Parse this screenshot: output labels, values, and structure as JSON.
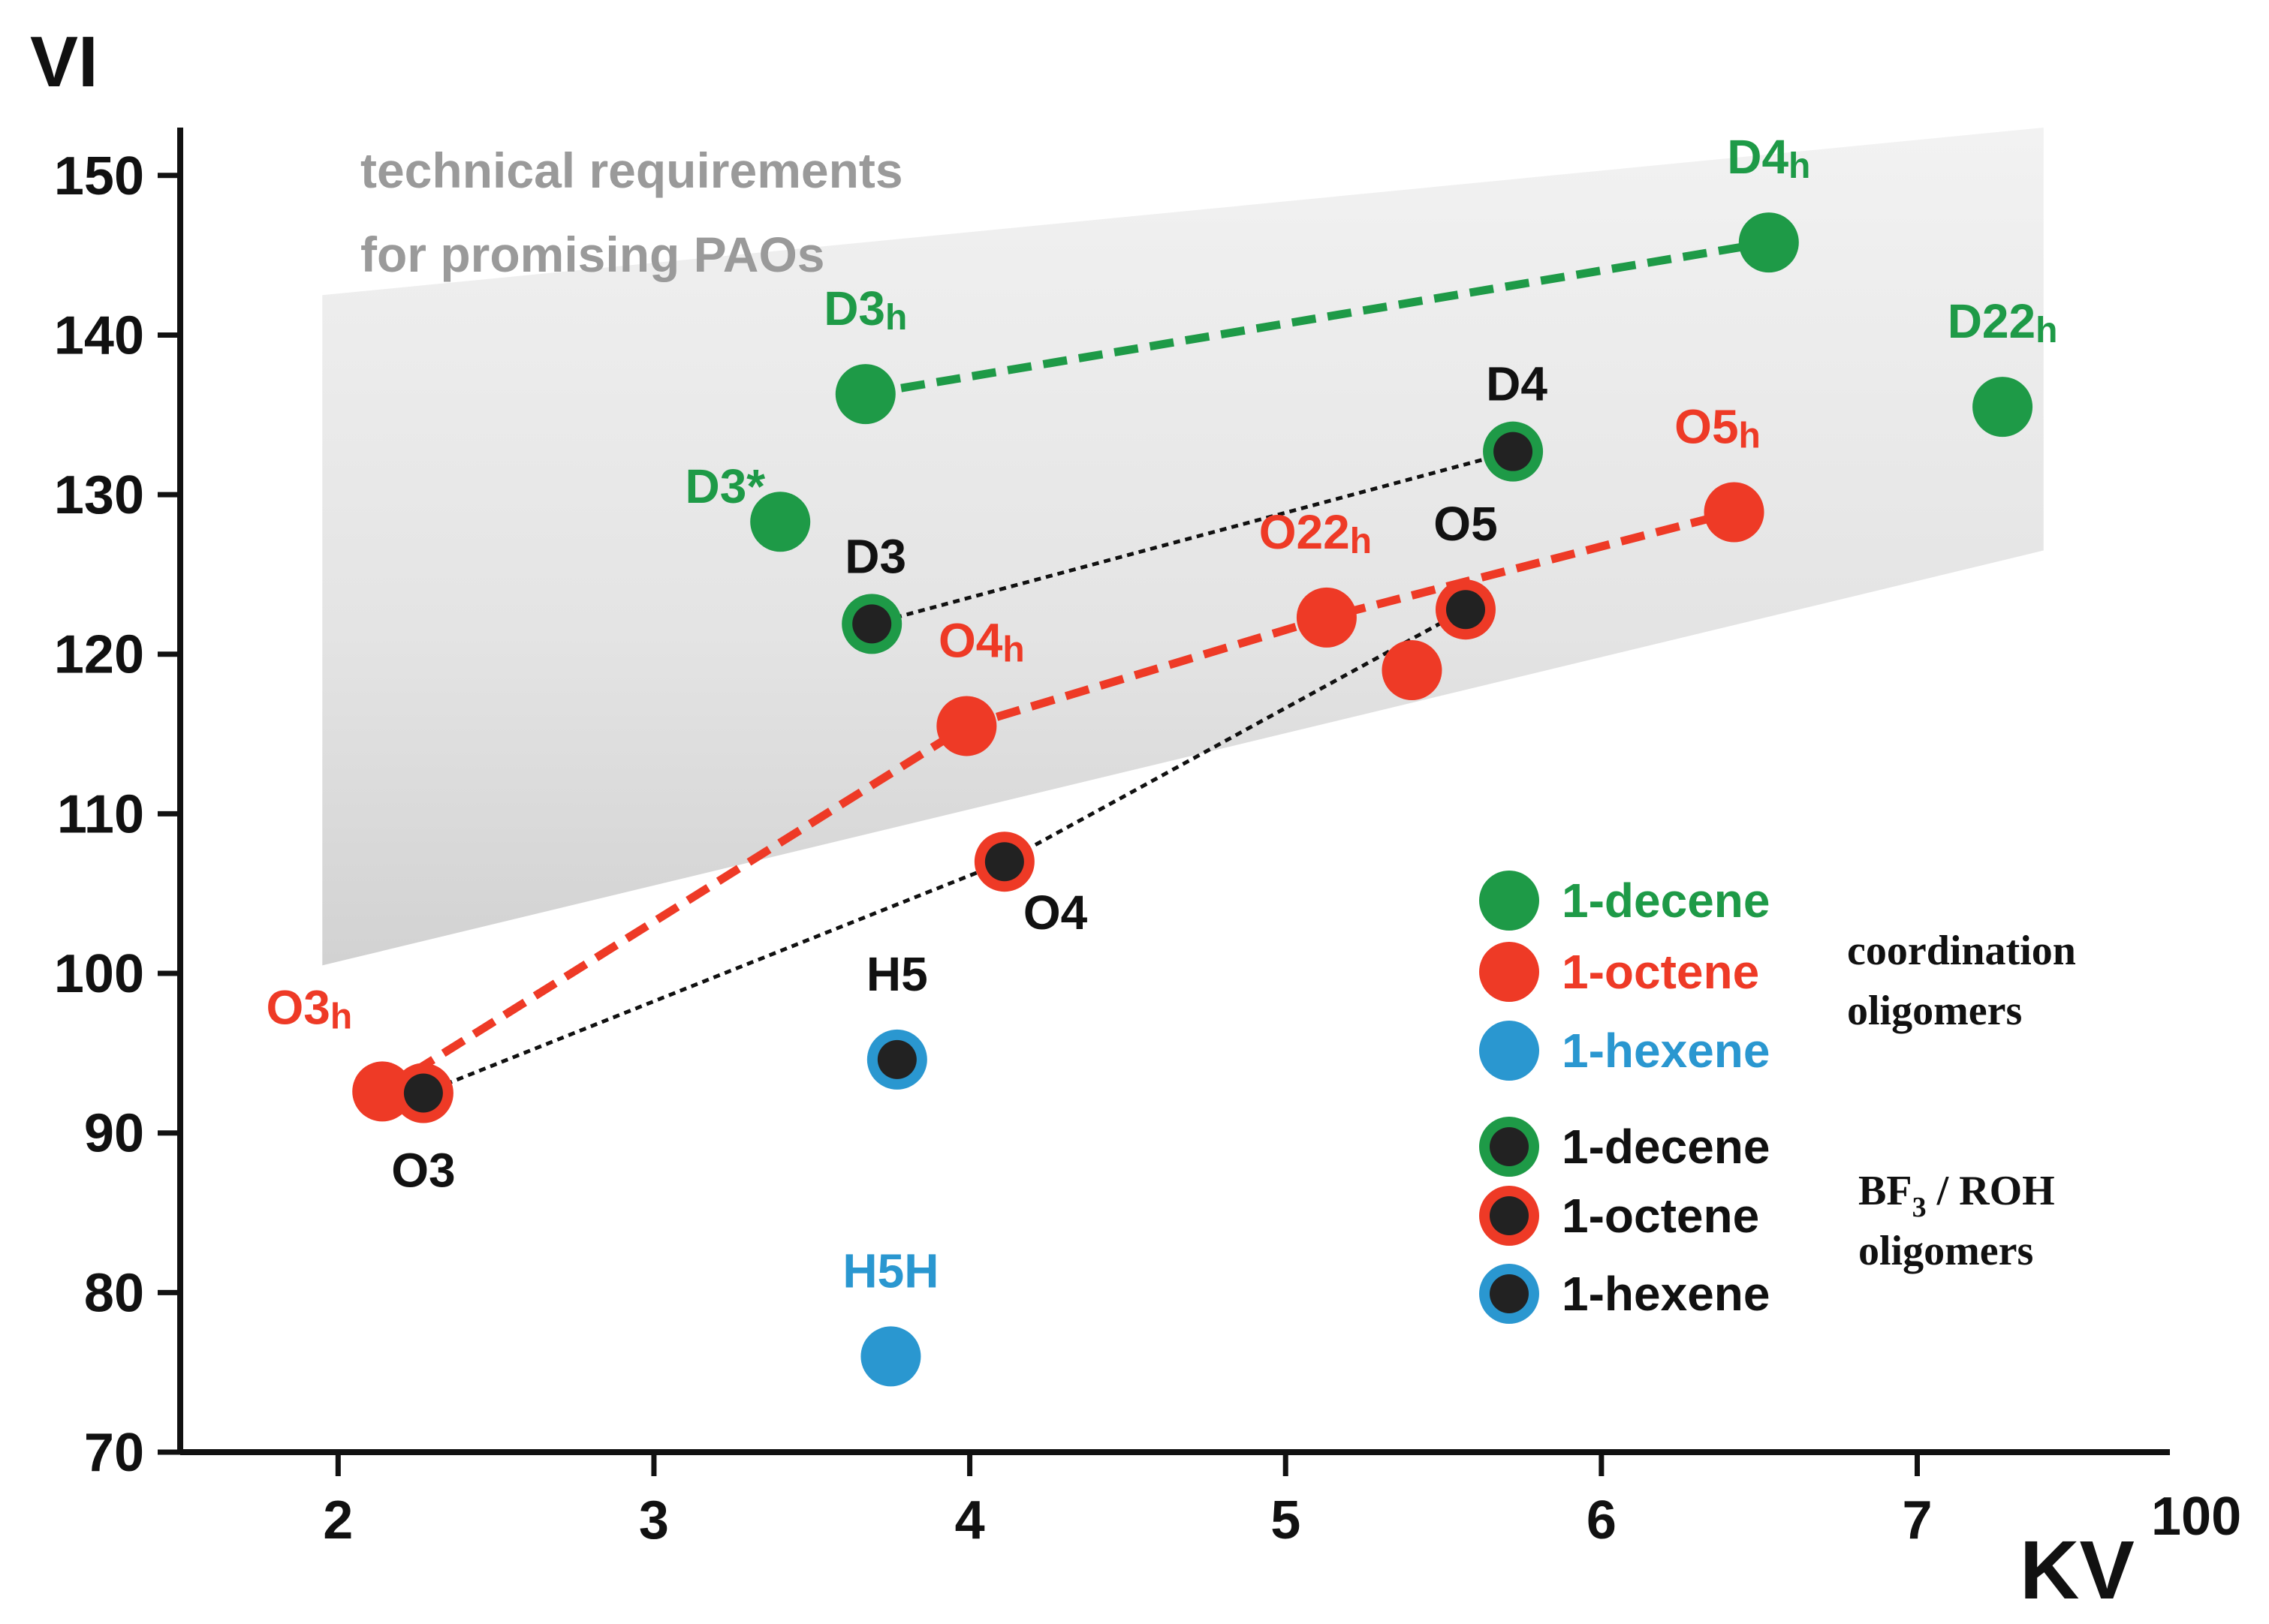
{
  "chart_data": {
    "type": "scatter",
    "title": "",
    "xlabel": "KV",
    "xlabel_superscript": "100",
    "ylabel": "VI",
    "xlim": [
      1.5,
      7.8
    ],
    "ylim": [
      70,
      153
    ],
    "x_ticks": [
      "2",
      "3",
      "4",
      "5",
      "6",
      "7"
    ],
    "y_ticks": [
      "70",
      "80",
      "90",
      "100",
      "110",
      "120",
      "130",
      "140",
      "150"
    ],
    "region": {
      "label_line1": "technical requirements",
      "label_line2": "for promising PAOs",
      "polygon": [
        [
          1.95,
          142.5
        ],
        [
          7.4,
          153
        ],
        [
          7.4,
          126.5
        ],
        [
          1.95,
          100.5
        ]
      ]
    },
    "colors": {
      "decene": "#1e9a47",
      "octene": "#ee3a26",
      "hexene": "#2a97d0",
      "core": "#222222",
      "black_line": "#111111",
      "region": "#d8d8d8"
    },
    "series": [
      {
        "name": "1-decene",
        "group": "coordination oligomers",
        "color_key": "decene",
        "style": "filled",
        "line": "dashed",
        "points": [
          {
            "label": "D3",
            "sub": "h",
            "x": 3.67,
            "y": 136.3,
            "connect": true
          },
          {
            "label": "D4",
            "sub": "h",
            "x": 6.53,
            "y": 145.8,
            "connect": true
          },
          {
            "label": "D3*",
            "sub": "",
            "x": 3.4,
            "y": 128.3,
            "connect": false
          },
          {
            "label": "D22",
            "sub": "h",
            "x": 7.27,
            "y": 135.5,
            "connect": false
          }
        ]
      },
      {
        "name": "1-octene",
        "group": "coordination oligomers",
        "color_key": "octene",
        "style": "filled",
        "line": "dashed",
        "points": [
          {
            "label": "O3",
            "sub": "h",
            "x": 2.14,
            "y": 92.6,
            "connect": true
          },
          {
            "label": "O4",
            "sub": "h",
            "x": 3.99,
            "y": 115.5,
            "connect": true
          },
          {
            "label": "O22",
            "sub": "h",
            "x": 5.13,
            "y": 122.3,
            "connect": true
          },
          {
            "label": "O5",
            "sub": "h",
            "x": 6.42,
            "y": 128.9,
            "connect": true
          },
          {
            "label": "",
            "sub": "",
            "x": 5.4,
            "y": 119.0,
            "connect": false
          }
        ]
      },
      {
        "name": "1-hexene",
        "group": "coordination oligomers",
        "color_key": "hexene",
        "style": "filled",
        "line": "none",
        "points": [
          {
            "label": "H5H",
            "sub": "",
            "x": 3.75,
            "y": 76.0,
            "connect": false
          }
        ]
      },
      {
        "name": "1-decene",
        "group": "BF3 / ROH oligomers",
        "color_key": "decene",
        "style": "ring",
        "line": "dotted",
        "points": [
          {
            "label": "D3",
            "sub": "",
            "x": 3.69,
            "y": 121.9,
            "connect": true
          },
          {
            "label": "D4",
            "sub": "",
            "x": 5.72,
            "y": 132.7,
            "connect": true
          }
        ]
      },
      {
        "name": "1-octene",
        "group": "BF3 / ROH oligomers",
        "color_key": "octene",
        "style": "ring",
        "line": "dotted",
        "points": [
          {
            "label": "O3",
            "sub": "",
            "x": 2.27,
            "y": 92.5,
            "connect": true
          },
          {
            "label": "O4",
            "sub": "",
            "x": 4.11,
            "y": 107.0,
            "connect": true
          },
          {
            "label": "O5",
            "sub": "",
            "x": 5.57,
            "y": 122.8,
            "connect": true
          }
        ]
      },
      {
        "name": "1-hexene",
        "group": "BF3 / ROH oligomers",
        "color_key": "hexene",
        "style": "ring",
        "line": "none",
        "points": [
          {
            "label": "H5",
            "sub": "",
            "x": 3.77,
            "y": 94.6,
            "connect": false
          }
        ]
      }
    ],
    "legend": {
      "position": "bottom-right",
      "entries": [
        {
          "label": "1-decene",
          "color_key": "decene",
          "style": "filled"
        },
        {
          "label": "1-octene",
          "color_key": "octene",
          "style": "filled"
        },
        {
          "label": "1-hexene",
          "color_key": "hexene",
          "style": "filled"
        },
        {
          "label": "1-decene",
          "color_key": "decene",
          "style": "ring"
        },
        {
          "label": "1-octene",
          "color_key": "octene",
          "style": "ring"
        },
        {
          "label": "1-hexene",
          "color_key": "hexene",
          "style": "ring"
        }
      ],
      "group1_line1": "coordination",
      "group1_line2": "oligomers",
      "group2_line1_main": "BF",
      "group2_line1_sub": "3",
      "group2_line1_rest": " / ROH",
      "group2_line2": "oligomers"
    }
  }
}
